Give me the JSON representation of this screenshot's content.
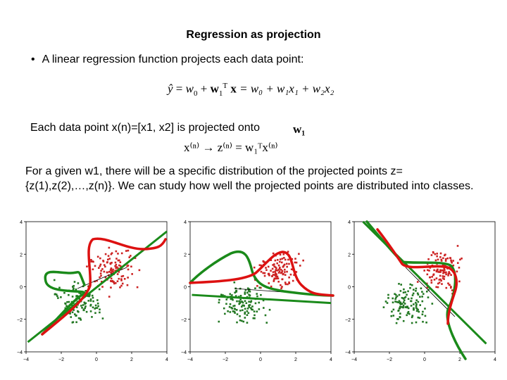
{
  "slide": {
    "title": "Regression as projection",
    "bullet_marker": "•",
    "bullet": "A linear regression function projects each data point:",
    "equation1": {
      "lhs": "ŷ",
      "eq": "=",
      "w0": "w",
      "w0_sub": "0",
      "plus": "+",
      "w1": "w",
      "w1_sub": "1",
      "T": "T",
      "x": "x",
      "rhs": "= w₀ + w₁x₁ + w₂x₂"
    },
    "projection_line": "Each data point x(n)=[x1, x2] is projected onto",
    "w1_symbol": "w₁",
    "equation2": "x⁽ⁿ⁾  → z⁽ⁿ⁾ = w₁ᵀx⁽ⁿ⁾",
    "paragraph": "For a given w1, there will be a specific distribution of the projected points z={z(1),z(2),…,z(n)}. We can study how well the projected points are distributed into classes."
  },
  "plots": [
    {
      "name": "projection-plot-1",
      "type": "scatter",
      "xlim": [
        -4,
        4
      ],
      "ylim": [
        -4,
        4
      ],
      "xticks": [
        "−4",
        "−2",
        "0",
        "2",
        "4"
      ],
      "yticks": [
        "4",
        "2",
        "0",
        "−2",
        "−4"
      ],
      "direction": "diagonal-up"
    },
    {
      "name": "projection-plot-2",
      "type": "scatter",
      "xlim": [
        -4,
        4
      ],
      "ylim": [
        -4,
        4
      ],
      "xticks": [
        "−4",
        "−2",
        "0",
        "2",
        "4"
      ],
      "yticks": [
        "4",
        "2",
        "0",
        "−2",
        "−4"
      ],
      "direction": "near-horizontal"
    },
    {
      "name": "projection-plot-3",
      "type": "scatter",
      "xlim": [
        -4,
        4
      ],
      "ylim": [
        -4,
        4
      ],
      "xticks": [
        "−4",
        "−2",
        "0",
        "2",
        "4"
      ],
      "yticks": [
        "4",
        "2",
        "0",
        "−2",
        "−4"
      ],
      "direction": "diagonal-down"
    }
  ],
  "colors": {
    "class_a": "#cc2222",
    "class_b": "#227722",
    "curve_red": "#dd1111",
    "curve_green": "#1a8a1a"
  }
}
